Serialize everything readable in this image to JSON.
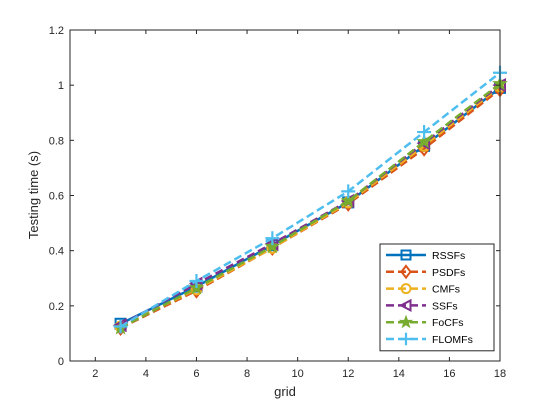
{
  "chart_data": {
    "type": "line",
    "title": "",
    "xlabel": "grid",
    "ylabel": "Testing time (s)",
    "xlim": [
      1,
      18
    ],
    "ylim": [
      0,
      1.2
    ],
    "xticks": [
      2,
      4,
      6,
      8,
      10,
      12,
      14,
      16,
      18
    ],
    "yticks": [
      0,
      0.2,
      0.4,
      0.6,
      0.8,
      1,
      1.2
    ],
    "xtick_labels": [
      "2",
      "4",
      "6",
      "8",
      "10",
      "12",
      "14",
      "16",
      "18"
    ],
    "ytick_labels": [
      "0",
      "0.2",
      "0.4",
      "0.6",
      "0.8",
      "1",
      "1.2"
    ],
    "grid": false,
    "legend_position": "bottom-right",
    "x": [
      3,
      6,
      9,
      12,
      15,
      18
    ],
    "series": [
      {
        "name": "RSSFs",
        "values": [
          0.135,
          0.27,
          0.42,
          0.575,
          0.78,
          0.99
        ],
        "color": "#0072BD",
        "dash": "solid",
        "marker": "square"
      },
      {
        "name": "PSDFs",
        "values": [
          0.12,
          0.255,
          0.41,
          0.57,
          0.77,
          0.985
        ],
        "color": "#D95319",
        "dash": "dashed",
        "marker": "diamond"
      },
      {
        "name": "CMFs",
        "values": [
          0.125,
          0.26,
          0.41,
          0.575,
          0.78,
          0.995
        ],
        "color": "#EDB120",
        "dash": "dashed",
        "marker": "circle"
      },
      {
        "name": "SSFs",
        "values": [
          0.13,
          0.28,
          0.425,
          0.58,
          0.79,
          1.0
        ],
        "color": "#7E2F8E",
        "dash": "dashed",
        "marker": "triangle-left"
      },
      {
        "name": "FoCFs",
        "values": [
          0.12,
          0.265,
          0.415,
          0.58,
          0.795,
          1.005
        ],
        "color": "#77AC30",
        "dash": "dashed",
        "marker": "star"
      },
      {
        "name": "FLOMFs",
        "values": [
          0.125,
          0.29,
          0.445,
          0.615,
          0.83,
          1.045
        ],
        "color": "#4DBEEE",
        "dash": "dashed",
        "marker": "plus"
      }
    ]
  }
}
